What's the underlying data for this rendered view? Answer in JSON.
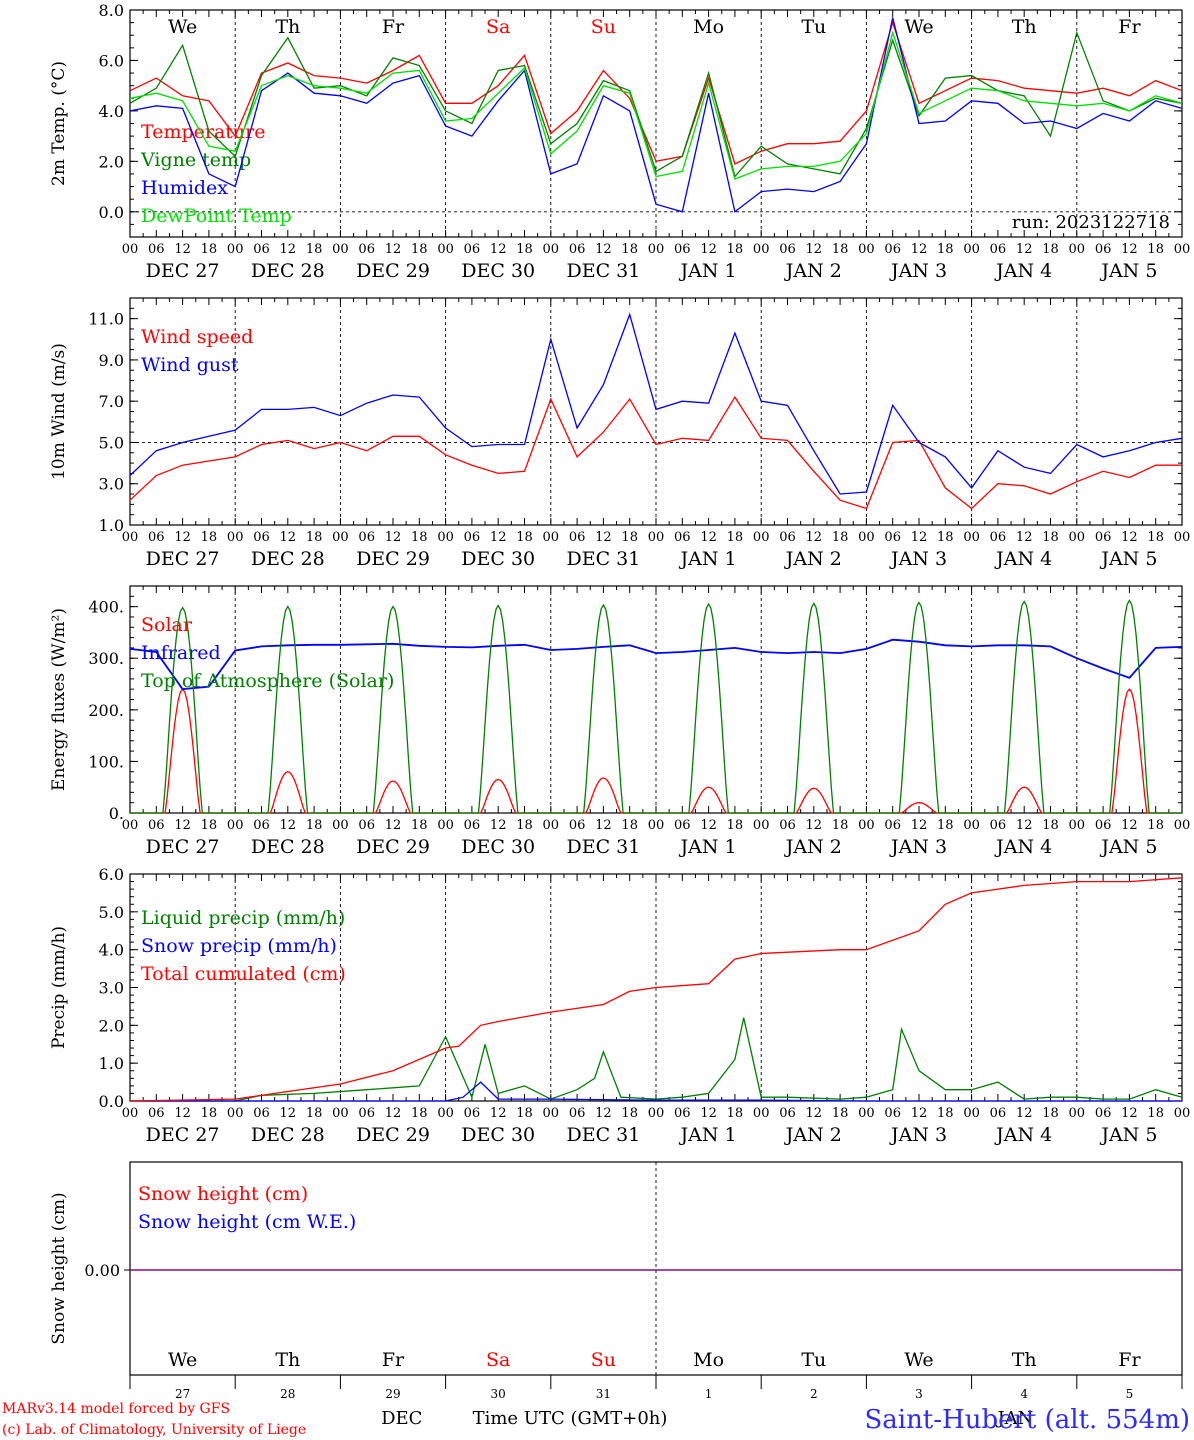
{
  "run_label": "run: 2023122718",
  "weekdays_top": [
    {
      "label": "We",
      "color": "#000000"
    },
    {
      "label": "Th",
      "color": "#000000"
    },
    {
      "label": "Fr",
      "color": "#000000"
    },
    {
      "label": "Sa",
      "color": "#ff0000"
    },
    {
      "label": "Su",
      "color": "#ff0000"
    },
    {
      "label": "Mo",
      "color": "#000000"
    },
    {
      "label": "Tu",
      "color": "#000000"
    },
    {
      "label": "We",
      "color": "#000000"
    },
    {
      "label": "Th",
      "color": "#000000"
    },
    {
      "label": "Fr",
      "color": "#000000"
    }
  ],
  "hour_ticks": [
    "00",
    "06",
    "12",
    "18"
  ],
  "final_hour_tick": "00",
  "date_labels": [
    "DEC 27",
    "DEC 28",
    "DEC 29",
    "DEC 30",
    "DEC 31",
    "JAN 1",
    "JAN 2",
    "JAN 3",
    "JAN 4",
    "JAN 5"
  ],
  "day_numbers": [
    "27",
    "28",
    "29",
    "30",
    "31",
    "1",
    "2",
    "3",
    "4",
    "5"
  ],
  "month_labels": {
    "dec": "DEC",
    "jan": "JAN"
  },
  "x_axis_title": "Time UTC (GMT+0h)",
  "footer": {
    "model": "MARv3.14 model forced by GFS",
    "lab": "(c) Lab. of Climatology, University of Liege",
    "station": "Saint-Hubert (alt. 554m)"
  },
  "colors": {
    "red": "#ff0000",
    "green": "#008000",
    "blue": "#0000ff",
    "lightgreen": "#00e000",
    "snow": "#800080"
  },
  "chart_data": [
    {
      "type": "line",
      "ylabel": "2m Temp. (°C)",
      "ylim": [
        -1,
        8
      ],
      "y_ticks": [
        "0.0",
        "2.0",
        "4.0",
        "6.0",
        "8.0"
      ],
      "reference_line": 0,
      "x_unit": "hours since Dec 27 00 UTC",
      "xlim": [
        0,
        240
      ],
      "series": [
        {
          "name": "Temperature",
          "color": "#ff0000",
          "x": [
            0,
            6,
            12,
            18,
            24,
            30,
            36,
            42,
            48,
            54,
            60,
            66,
            72,
            78,
            84,
            90,
            96,
            102,
            108,
            114,
            120,
            126,
            132,
            138,
            144,
            150,
            156,
            162,
            168,
            174,
            180,
            186,
            192,
            198,
            204,
            210,
            216,
            222,
            228,
            234,
            240
          ],
          "y": [
            4.8,
            5.3,
            4.6,
            4.4,
            3.0,
            5.5,
            5.9,
            5.4,
            5.3,
            5.1,
            5.6,
            6.2,
            4.3,
            4.3,
            5.0,
            6.2,
            3.1,
            4.0,
            5.6,
            4.5,
            2.0,
            2.2,
            5.3,
            1.9,
            2.4,
            2.7,
            2.7,
            2.8,
            4.0,
            7.5,
            4.3,
            4.8,
            5.3,
            5.2,
            4.9,
            4.8,
            4.7,
            4.9,
            4.6,
            5.2,
            4.8
          ]
        },
        {
          "name": "Vigne temp",
          "color": "#008000",
          "x": [
            0,
            6,
            12,
            18,
            24,
            30,
            36,
            42,
            48,
            54,
            60,
            66,
            72,
            78,
            84,
            90,
            96,
            102,
            108,
            114,
            120,
            126,
            132,
            138,
            144,
            150,
            156,
            162,
            168,
            174,
            180,
            186,
            192,
            198,
            204,
            210,
            216,
            222,
            228,
            234,
            240
          ],
          "y": [
            4.3,
            4.9,
            6.6,
            3.2,
            2.2,
            5.4,
            6.9,
            4.9,
            5.0,
            4.6,
            6.1,
            5.8,
            4.0,
            3.5,
            5.6,
            5.8,
            2.7,
            3.5,
            5.2,
            4.8,
            1.6,
            2.2,
            5.5,
            1.4,
            2.6,
            1.9,
            1.7,
            1.5,
            3.3,
            6.8,
            3.8,
            5.3,
            5.4,
            4.8,
            4.6,
            3.0,
            7.1,
            4.4,
            4.0,
            4.5,
            4.3
          ]
        },
        {
          "name": "Humidex",
          "color": "#0000ff",
          "x": [
            0,
            6,
            12,
            18,
            24,
            30,
            36,
            42,
            48,
            54,
            60,
            66,
            72,
            78,
            84,
            90,
            96,
            102,
            108,
            114,
            120,
            126,
            132,
            138,
            144,
            150,
            156,
            162,
            168,
            174,
            180,
            186,
            192,
            198,
            204,
            210,
            216,
            222,
            228,
            234,
            240
          ],
          "y": [
            4.0,
            4.2,
            4.1,
            1.5,
            1.0,
            4.8,
            5.5,
            4.7,
            4.6,
            4.3,
            5.1,
            5.4,
            3.4,
            3.0,
            4.4,
            5.6,
            1.5,
            1.9,
            4.6,
            4.0,
            0.3,
            0.0,
            4.7,
            0.0,
            0.8,
            0.9,
            0.8,
            1.2,
            2.7,
            7.7,
            3.5,
            3.6,
            4.4,
            4.3,
            3.5,
            3.6,
            3.3,
            3.9,
            3.6,
            4.4,
            4.1
          ]
        },
        {
          "name": "DewPoint Temp",
          "color": "#00e000",
          "x": [
            0,
            6,
            12,
            18,
            24,
            30,
            36,
            42,
            48,
            54,
            60,
            66,
            72,
            78,
            84,
            90,
            96,
            102,
            108,
            114,
            120,
            126,
            132,
            138,
            144,
            150,
            156,
            162,
            168,
            174,
            180,
            186,
            192,
            198,
            204,
            210,
            216,
            222,
            228,
            234,
            240
          ],
          "y": [
            4.5,
            4.7,
            4.4,
            2.6,
            2.4,
            5.0,
            5.4,
            5.0,
            4.9,
            4.7,
            5.5,
            5.6,
            3.6,
            3.7,
            4.7,
            5.7,
            2.3,
            3.2,
            5.0,
            4.7,
            1.4,
            1.6,
            5.1,
            1.3,
            1.7,
            1.8,
            1.8,
            2.0,
            3.1,
            7.1,
            3.9,
            4.4,
            4.9,
            4.8,
            4.4,
            4.3,
            4.2,
            4.3,
            4.0,
            4.6,
            4.3
          ]
        }
      ]
    },
    {
      "type": "line",
      "ylabel": "10m Wind (m/s)",
      "ylim": [
        1,
        12
      ],
      "y_ticks": [
        "1.0",
        "3.0",
        "5.0",
        "7.0",
        "9.0",
        "11.0"
      ],
      "reference_line": 5,
      "x_unit": "hours since Dec 27 00 UTC",
      "xlim": [
        0,
        240
      ],
      "series": [
        {
          "name": "Wind speed",
          "color": "#ff0000",
          "x": [
            0,
            6,
            12,
            18,
            24,
            30,
            36,
            42,
            48,
            54,
            60,
            66,
            72,
            78,
            84,
            90,
            96,
            102,
            108,
            114,
            120,
            126,
            132,
            138,
            144,
            150,
            156,
            162,
            168,
            174,
            180,
            186,
            192,
            198,
            204,
            210,
            216,
            222,
            228,
            234,
            240
          ],
          "y": [
            2.2,
            3.4,
            3.9,
            4.1,
            4.3,
            4.9,
            5.1,
            4.7,
            5.0,
            4.6,
            5.3,
            5.3,
            4.4,
            3.9,
            3.5,
            3.6,
            7.1,
            4.3,
            5.5,
            7.1,
            4.9,
            5.2,
            5.1,
            7.2,
            5.2,
            5.1,
            3.6,
            2.2,
            1.8,
            5.0,
            5.1,
            2.8,
            1.8,
            3.0,
            2.9,
            2.5,
            3.1,
            3.6,
            3.3,
            3.9,
            3.9
          ]
        },
        {
          "name": "Wind gust",
          "color": "#0000ff",
          "x": [
            0,
            6,
            12,
            18,
            24,
            30,
            36,
            42,
            48,
            54,
            60,
            66,
            72,
            78,
            84,
            90,
            96,
            102,
            108,
            114,
            120,
            126,
            132,
            138,
            144,
            150,
            156,
            162,
            168,
            174,
            180,
            186,
            192,
            198,
            204,
            210,
            216,
            222,
            228,
            234,
            240
          ],
          "y": [
            3.4,
            4.6,
            5.0,
            5.3,
            5.6,
            6.6,
            6.6,
            6.7,
            6.3,
            6.9,
            7.3,
            7.2,
            5.7,
            4.8,
            4.9,
            4.9,
            10.0,
            5.7,
            7.8,
            11.2,
            6.6,
            7.0,
            6.9,
            10.3,
            7.0,
            6.8,
            4.6,
            2.5,
            2.6,
            6.8,
            5.0,
            4.3,
            2.8,
            4.6,
            3.8,
            3.5,
            4.9,
            4.3,
            4.6,
            5.0,
            5.2
          ]
        }
      ]
    },
    {
      "type": "line",
      "ylabel": "Energy fluxes (W/m²)",
      "ylim": [
        0,
        440
      ],
      "y_ticks": [
        "0.",
        "100.",
        "200.",
        "300.",
        "400."
      ],
      "x_unit": "hours since Dec 27 00 UTC",
      "xlim": [
        0,
        240
      ],
      "series": [
        {
          "name": "Solar",
          "color": "#ff0000",
          "shape": "daily_bell",
          "peak_hour": 12,
          "half_width_hours": 4,
          "daily_peaks": [
            240,
            80,
            62,
            65,
            68,
            50,
            48,
            20,
            50,
            240
          ]
        },
        {
          "name": "Infrared",
          "color": "#0000ff",
          "x": [
            0,
            6,
            12,
            18,
            24,
            30,
            36,
            42,
            48,
            54,
            60,
            66,
            72,
            78,
            84,
            90,
            96,
            102,
            108,
            114,
            120,
            126,
            132,
            138,
            144,
            150,
            156,
            162,
            168,
            174,
            180,
            186,
            192,
            198,
            204,
            210,
            216,
            222,
            228,
            234,
            240
          ],
          "y": [
            318,
            312,
            240,
            245,
            315,
            323,
            325,
            326,
            326,
            327,
            328,
            324,
            322,
            321,
            324,
            326,
            316,
            318,
            322,
            325,
            310,
            312,
            316,
            320,
            312,
            310,
            312,
            310,
            318,
            336,
            332,
            325,
            323,
            325,
            325,
            323,
            300,
            280,
            262,
            320,
            322
          ]
        },
        {
          "name": "Top of Atmosphere (Solar)",
          "color": "#008000",
          "shape": "daily_bell",
          "peak_hour": 12,
          "half_width_hours": 4.5,
          "daily_peaks": [
            398,
            400,
            400,
            402,
            403,
            405,
            406,
            408,
            410,
            412
          ]
        }
      ]
    },
    {
      "type": "line",
      "ylabel": "Precip (mm/h)",
      "ylim": [
        0,
        6
      ],
      "y_ticks": [
        "0.0",
        "1.0",
        "2.0",
        "3.0",
        "4.0",
        "5.0",
        "6.0"
      ],
      "x_unit": "hours since Dec 27 00 UTC",
      "xlim": [
        0,
        240
      ],
      "series": [
        {
          "name": "Liquid precip (mm/h)",
          "color": "#008000",
          "x": [
            0,
            12,
            24,
            30,
            42,
            54,
            66,
            72,
            78,
            81,
            84,
            90,
            96,
            102,
            106,
            108,
            112,
            120,
            126,
            132,
            138,
            140,
            144,
            150,
            162,
            168,
            174,
            176,
            180,
            186,
            192,
            198,
            204,
            210,
            216,
            222,
            228,
            234,
            240
          ],
          "y": [
            0.0,
            0.0,
            0.0,
            0.15,
            0.2,
            0.3,
            0.4,
            1.7,
            0.1,
            1.5,
            0.2,
            0.4,
            0.05,
            0.3,
            0.6,
            1.3,
            0.1,
            0.05,
            0.1,
            0.2,
            1.1,
            2.2,
            0.1,
            0.1,
            0.05,
            0.1,
            0.3,
            1.9,
            0.8,
            0.3,
            0.3,
            0.5,
            0.05,
            0.1,
            0.1,
            0.05,
            0.05,
            0.3,
            0.1
          ]
        },
        {
          "name": "Snow precip (mm/h)",
          "color": "#0000ff",
          "x": [
            0,
            72,
            76,
            80,
            84,
            96,
            120,
            144,
            168,
            240
          ],
          "y": [
            0,
            0,
            0.1,
            0.5,
            0.05,
            0.05,
            0.02,
            0.02,
            0.0,
            0.0
          ]
        },
        {
          "name": "Total cumulated (cm)",
          "color": "#ff0000",
          "x": [
            0,
            24,
            36,
            48,
            60,
            72,
            75,
            80,
            84,
            96,
            108,
            114,
            120,
            132,
            138,
            140,
            144,
            162,
            168,
            180,
            186,
            192,
            204,
            216,
            228,
            240
          ],
          "y": [
            0.0,
            0.05,
            0.25,
            0.45,
            0.8,
            1.4,
            1.45,
            2.0,
            2.1,
            2.35,
            2.55,
            2.9,
            3.0,
            3.1,
            3.75,
            3.8,
            3.9,
            4.0,
            4.0,
            4.5,
            5.2,
            5.5,
            5.7,
            5.8,
            5.8,
            5.9
          ]
        }
      ]
    },
    {
      "type": "line",
      "ylabel": "Snow height (cm)",
      "y_ticks": [
        "0.00"
      ],
      "x_unit": "hours since Dec 27 00 UTC",
      "xlim": [
        0,
        240
      ],
      "series": [
        {
          "name": "Snow height (cm)",
          "color": "#ff0000",
          "x": [
            0,
            240
          ],
          "y": [
            0,
            0
          ]
        },
        {
          "name": "Snow height (cm W.E.)",
          "color": "#0000ff",
          "x": [
            0,
            240
          ],
          "y": [
            0,
            0
          ]
        }
      ]
    }
  ]
}
